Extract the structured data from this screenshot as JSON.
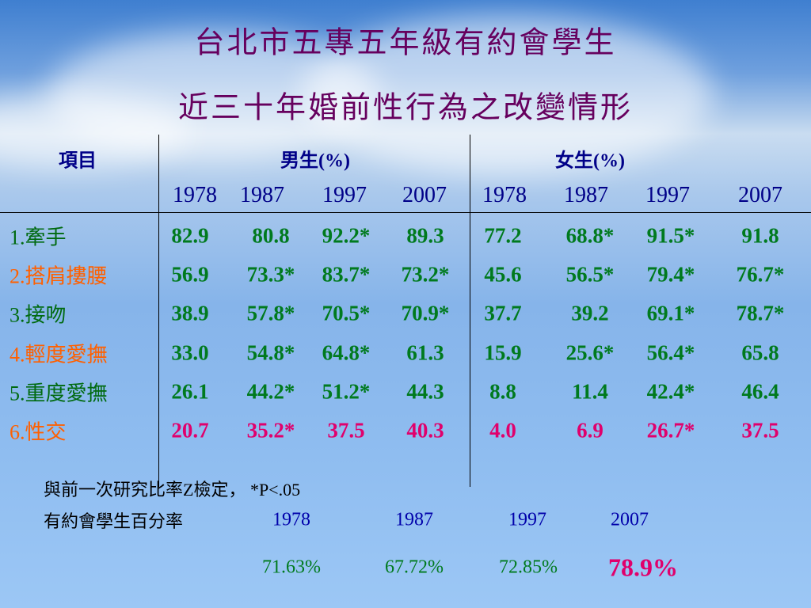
{
  "header": {
    "title_lines": [
      "台北市五專五年級有約會學生",
      "近三十年婚前性行為之改變情形"
    ]
  },
  "table": {
    "item_header": "項目",
    "groups": [
      "男生(%)",
      "女生(%)"
    ],
    "years": [
      "1978",
      "1987",
      "1997",
      "2007",
      "1978",
      "1987",
      "1997",
      "2007"
    ],
    "rows": [
      {
        "label": "1.牽手",
        "values": [
          "82.9",
          "80.8",
          "92.2*",
          "89.3",
          "77.2",
          "68.8*",
          "91.5*",
          "91.8"
        ]
      },
      {
        "label": "2.搭肩摟腰",
        "values": [
          "56.9",
          "73.3*",
          "83.7*",
          "73.2*",
          "45.6",
          "56.5*",
          "79.4*",
          "76.7*"
        ]
      },
      {
        "label": "3.接吻",
        "values": [
          "38.9",
          "57.8*",
          "70.5*",
          "70.9*",
          "37.7",
          "39.2",
          "69.1*",
          "78.7*"
        ]
      },
      {
        "label": "4.輕度愛撫",
        "values": [
          "33.0",
          "54.8*",
          "64.8*",
          "61.3",
          "15.9",
          "25.6*",
          "56.4*",
          "65.8"
        ]
      },
      {
        "label": "5.重度愛撫",
        "values": [
          "26.1",
          "44.2*",
          "51.2*",
          "44.3",
          "8.8",
          "11.4",
          "42.4*",
          "46.4"
        ]
      },
      {
        "label": "6.性交",
        "values": [
          "20.7",
          "35.2*",
          "37.5",
          "40.3",
          "4.0",
          "6.9",
          "26.7*",
          "37.5"
        ]
      }
    ]
  },
  "footer": {
    "note": "與前一次研究比率Z檢定， *P<.05",
    "rate_label": "有約會學生百分率",
    "years": [
      "1978",
      "1987",
      "1997",
      "2007"
    ],
    "rates": [
      "71.63%",
      "67.72%",
      "72.85%",
      "78.9%"
    ]
  }
}
